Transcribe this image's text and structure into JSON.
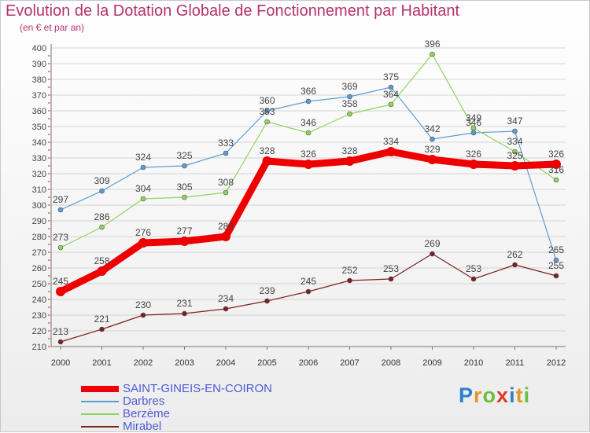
{
  "header": {
    "title": "Evolution de la Dotation Globale de Fonctionnement par Habitant",
    "subtitle": "(en € et par an)"
  },
  "logo": {
    "letters": [
      "P",
      "r",
      "o",
      "x",
      "i",
      "t",
      "i"
    ],
    "colors": [
      "#2f7fd0",
      "#e8922a",
      "#6abf3c",
      "#e03a2a",
      "#2f7fd0",
      "#e8922a",
      "#6abf3c"
    ]
  },
  "chart_data": {
    "type": "line",
    "x": [
      "2000",
      "2001",
      "2002",
      "2003",
      "2004",
      "2005",
      "2006",
      "2007",
      "2008",
      "2009",
      "2010",
      "2011",
      "2012"
    ],
    "ylim": [
      210,
      400
    ],
    "yticks": [
      210,
      220,
      230,
      240,
      250,
      260,
      270,
      280,
      290,
      300,
      310,
      320,
      330,
      340,
      350,
      360,
      370,
      380,
      390,
      400
    ],
    "grid": "horizontal",
    "legend_position": "bottom-left",
    "series": [
      {
        "name": "SAINT-GINEIS-EN-COIRON",
        "color": "#ee0000",
        "values": [
          245,
          258,
          276,
          277,
          280,
          328,
          326,
          328,
          334,
          329,
          326,
          325,
          326
        ]
      },
      {
        "name": "Darbres",
        "color": "#5b9bd5",
        "values": [
          297,
          309,
          324,
          325,
          333,
          360,
          366,
          369,
          375,
          342,
          346,
          347,
          265
        ]
      },
      {
        "name": "Berzème",
        "color": "#8fd45a",
        "values": [
          273,
          286,
          304,
          305,
          308,
          353,
          346,
          358,
          364,
          396,
          349,
          334,
          316
        ]
      },
      {
        "name": "Mirabel",
        "color": "#7a2020",
        "values": [
          213,
          221,
          230,
          231,
          234,
          239,
          245,
          252,
          253,
          269,
          253,
          262,
          255
        ]
      }
    ]
  }
}
